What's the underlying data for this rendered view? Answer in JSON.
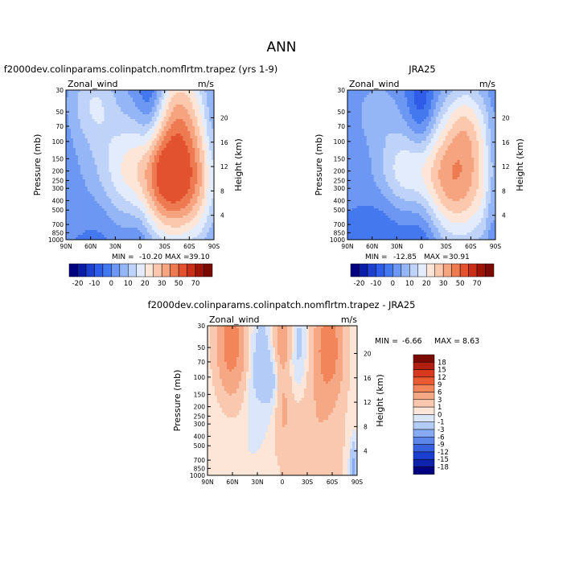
{
  "page_title": "ANN",
  "min_label": "MIN =",
  "max_label": "MAX =",
  "chart_data": [
    {
      "type": "contour",
      "title": "f2000dev.colinparams.colinpatch.nomflrtm.trapez (yrs 1-9)",
      "variable": "Zonal_wind",
      "units": "m/s",
      "ylabel": "Pressure (mb)",
      "y2label": "Height (km)",
      "x_ticks": [
        "90N",
        "60N",
        "30N",
        "0",
        "30S",
        "60S",
        "90S"
      ],
      "y_ticks": [
        "30",
        "50",
        "70",
        "100",
        "150",
        "200",
        "250",
        "300",
        "400",
        "500",
        "700",
        "850",
        "1000"
      ],
      "y2_ticks": [
        "20",
        "16",
        "12",
        "8",
        "4"
      ],
      "min": "-10.20",
      "max": "39.10",
      "features": [
        {
          "x": 0.5,
          "p": 250,
          "v": 40,
          "rx": 0.55,
          "ry": 1.2
        },
        {
          "x": -0.12,
          "p": 200,
          "v": 16,
          "rx": 0.6,
          "ry": 1.0
        },
        {
          "x": 0.55,
          "p": 40,
          "v": 20,
          "rx": 0.35,
          "ry": 1.0
        },
        {
          "x": -0.62,
          "p": 40,
          "v": 14,
          "rx": 0.35,
          "ry": 0.8
        },
        {
          "x": 0.1,
          "p": 40,
          "v": -8,
          "rx": 0.15,
          "ry": 1.2
        },
        {
          "x": 0.23,
          "p": 35,
          "v": -6,
          "rx": 0.15,
          "ry": 0.8
        },
        {
          "x": 0.0,
          "p": 800,
          "v": -8,
          "rx": 0.22,
          "ry": 1.6
        },
        {
          "x": -0.5,
          "p": 800,
          "v": -3,
          "rx": 0.3,
          "ry": 1.0
        },
        {
          "x": 0.95,
          "p": 150,
          "v": -4,
          "rx": 0.08,
          "ry": 1.5
        }
      ]
    },
    {
      "type": "contour",
      "title": "JRA25",
      "variable": "Zonal_wind",
      "units": "m/s",
      "ylabel": "Pressure (mb)",
      "y2label": "Height (km)",
      "x_ticks": [
        "90N",
        "60N",
        "30N",
        "0",
        "30S",
        "60S",
        "90S"
      ],
      "y_ticks": [
        "30",
        "50",
        "70",
        "100",
        "150",
        "200",
        "250",
        "300",
        "400",
        "500",
        "700",
        "850",
        "1000"
      ],
      "y2_ticks": [
        "20",
        "16",
        "12",
        "8",
        "4"
      ],
      "min": "-12.85",
      "max": "30.91",
      "features": [
        {
          "x": 0.48,
          "p": 250,
          "v": 32,
          "rx": 0.55,
          "ry": 1.2
        },
        {
          "x": -0.2,
          "p": 200,
          "v": 16,
          "rx": 0.45,
          "ry": 0.8
        },
        {
          "x": 0.6,
          "p": 60,
          "v": 14,
          "rx": 0.3,
          "ry": 0.8
        },
        {
          "x": -0.6,
          "p": 50,
          "v": 8,
          "rx": 0.3,
          "ry": 0.6
        },
        {
          "x": 0.0,
          "p": 40,
          "v": -10,
          "rx": 0.18,
          "ry": 1.0
        },
        {
          "x": 0.0,
          "p": 800,
          "v": -10,
          "rx": 0.25,
          "ry": 1.6
        },
        {
          "x": -0.5,
          "p": 800,
          "v": -5,
          "rx": 0.3,
          "ry": 1.0
        },
        {
          "x": 0.95,
          "p": 300,
          "v": -6,
          "rx": 0.08,
          "ry": 1.5
        }
      ]
    },
    {
      "type": "contour",
      "title": "f2000dev.colinparams.colinpatch.nomflrtm.trapez - JRA25",
      "variable": "Zonal_wind",
      "units": "m/s",
      "ylabel": "Pressure (mb)",
      "y2label": "Height (km)",
      "x_ticks": [
        "90N",
        "60N",
        "30N",
        "0",
        "30S",
        "60S",
        "90S"
      ],
      "y_ticks": [
        "30",
        "50",
        "70",
        "100",
        "150",
        "200",
        "250",
        "300",
        "400",
        "500",
        "700",
        "850",
        "1000"
      ],
      "y2_ticks": [
        "20",
        "16",
        "12",
        "8",
        "4"
      ],
      "min": "-6.66",
      "max": "8.63",
      "features": [
        {
          "x": -0.68,
          "p": 45,
          "v": 8,
          "rx": 0.2,
          "ry": 1.0
        },
        {
          "x": 0.62,
          "p": 50,
          "v": 8,
          "rx": 0.2,
          "ry": 1.0
        },
        {
          "x": 0.0,
          "p": 40,
          "v": 5,
          "rx": 0.12,
          "ry": 0.6
        },
        {
          "x": -0.3,
          "p": 70,
          "v": -2,
          "rx": 0.2,
          "ry": 1.0
        },
        {
          "x": 0.22,
          "p": 60,
          "v": -2,
          "rx": 0.15,
          "ry": 1.0
        },
        {
          "x": 0.0,
          "p": 180,
          "v": 3,
          "rx": 0.12,
          "ry": 0.8
        },
        {
          "x": -0.1,
          "p": 120,
          "v": -2,
          "rx": 0.1,
          "ry": 0.6
        },
        {
          "x": 0.35,
          "p": 400,
          "v": 2,
          "rx": 0.35,
          "ry": 1.4
        },
        {
          "x": 0.5,
          "p": 850,
          "v": 1,
          "rx": 0.5,
          "ry": 1.4
        },
        {
          "x": 0.95,
          "p": 850,
          "v": -4,
          "rx": 0.05,
          "ry": 0.5
        }
      ]
    }
  ],
  "colorbar_a": {
    "labels": [
      "-20",
      "-10",
      "0",
      "10",
      "20",
      "30",
      "50",
      "70"
    ],
    "colors": [
      "#000080",
      "#0a1ca8",
      "#1c3fd0",
      "#2f5ce8",
      "#4478ee",
      "#6c97f2",
      "#95b6f6",
      "#bfd3f9",
      "#e3ecfc",
      "#fde6d8",
      "#fbc8ad",
      "#f6a47f",
      "#ee7a52",
      "#e2522f",
      "#c82e18",
      "#a01408",
      "#7c0a04"
    ]
  },
  "colorbar_b": {
    "labels": [
      "18",
      "15",
      "12",
      "9",
      "6",
      "3",
      "1",
      "0",
      "-1",
      "-3",
      "-6",
      "-9",
      "-12",
      "-15",
      "-18"
    ],
    "colors": [
      "#7c0a04",
      "#b01f10",
      "#d83a1f",
      "#ec5c32",
      "#f2855a",
      "#f6a884",
      "#f9c8ae",
      "#fde6d8",
      "#dbe6fb",
      "#b3cbf7",
      "#88aaf2",
      "#5c86ea",
      "#3762df",
      "#1b3fd0",
      "#0c23aa",
      "#000080"
    ]
  }
}
